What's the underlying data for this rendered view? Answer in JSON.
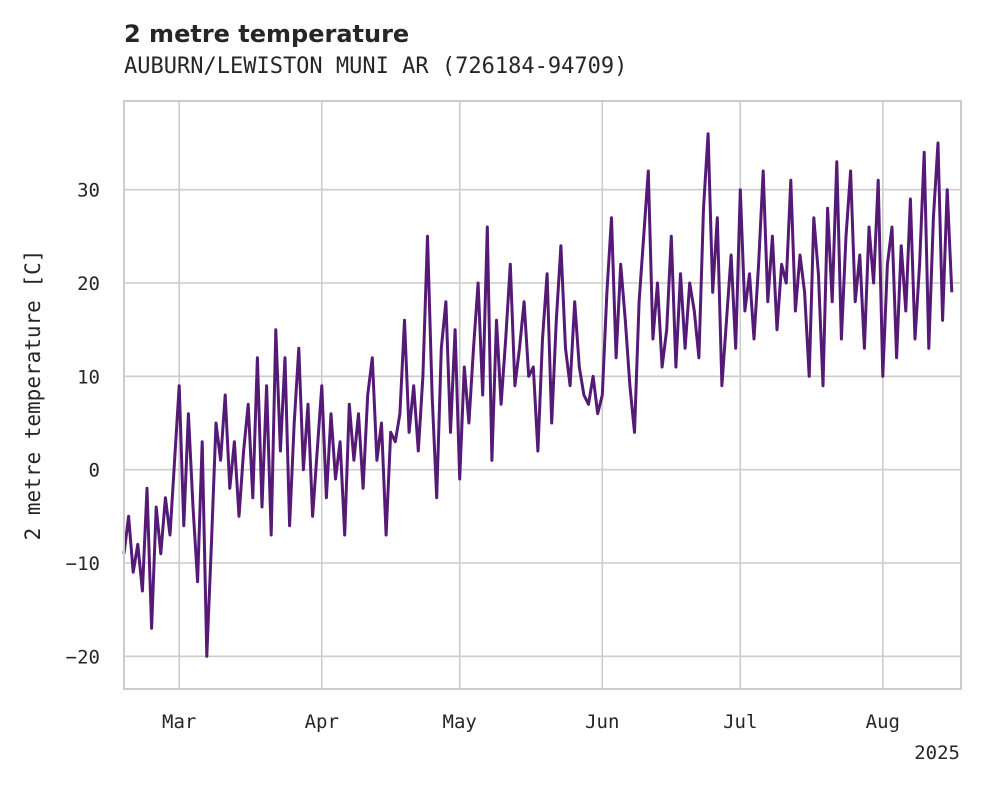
{
  "chart_data": {
    "type": "line",
    "title": "2 metre temperature",
    "subtitle": "AUBURN/LEWISTON MUNI AR (726184-94709)",
    "ylabel": "2 metre temperature [C]",
    "xlabel": "",
    "x_tick_labels": [
      "Mar",
      "Apr",
      "May",
      "Jun",
      "Jul",
      "Aug"
    ],
    "x_offset_label": "2025",
    "y_ticks": [
      -20,
      -10,
      0,
      10,
      20,
      30
    ],
    "xlim": [
      "2025-02-17",
      "2025-08-18"
    ],
    "ylim": [
      -23.5,
      39.5
    ],
    "grid": true,
    "line_color": "#551a75",
    "series": [
      {
        "points": [
          [
            "2025-02-17",
            -9
          ],
          [
            "2025-02-18",
            -5
          ],
          [
            "2025-02-19",
            -11
          ],
          [
            "2025-02-20",
            -8
          ],
          [
            "2025-02-21",
            -13
          ],
          [
            "2025-02-22",
            -2
          ],
          [
            "2025-02-23",
            -17
          ],
          [
            "2025-02-24",
            -4
          ],
          [
            "2025-02-25",
            -9
          ],
          [
            "2025-02-26",
            -3
          ],
          [
            "2025-02-27",
            -7
          ],
          [
            "2025-02-28",
            1
          ],
          [
            "2025-03-01",
            9
          ],
          [
            "2025-03-02",
            -6
          ],
          [
            "2025-03-03",
            6
          ],
          [
            "2025-03-04",
            -4
          ],
          [
            "2025-03-05",
            -12
          ],
          [
            "2025-03-06",
            3
          ],
          [
            "2025-03-07",
            -20
          ],
          [
            "2025-03-08",
            -8
          ],
          [
            "2025-03-09",
            5
          ],
          [
            "2025-03-10",
            1
          ],
          [
            "2025-03-11",
            8
          ],
          [
            "2025-03-12",
            -2
          ],
          [
            "2025-03-13",
            3
          ],
          [
            "2025-03-14",
            -5
          ],
          [
            "2025-03-15",
            2
          ],
          [
            "2025-03-16",
            7
          ],
          [
            "2025-03-17",
            -3
          ],
          [
            "2025-03-18",
            12
          ],
          [
            "2025-03-19",
            -4
          ],
          [
            "2025-03-20",
            9
          ],
          [
            "2025-03-21",
            -7
          ],
          [
            "2025-03-22",
            15
          ],
          [
            "2025-03-23",
            2
          ],
          [
            "2025-03-24",
            12
          ],
          [
            "2025-03-25",
            -6
          ],
          [
            "2025-03-26",
            5
          ],
          [
            "2025-03-27",
            13
          ],
          [
            "2025-03-28",
            0
          ],
          [
            "2025-03-29",
            7
          ],
          [
            "2025-03-30",
            -5
          ],
          [
            "2025-03-31",
            2
          ],
          [
            "2025-04-01",
            9
          ],
          [
            "2025-04-02",
            -3
          ],
          [
            "2025-04-03",
            6
          ],
          [
            "2025-04-04",
            -1
          ],
          [
            "2025-04-05",
            3
          ],
          [
            "2025-04-06",
            -7
          ],
          [
            "2025-04-07",
            7
          ],
          [
            "2025-04-08",
            1
          ],
          [
            "2025-04-09",
            6
          ],
          [
            "2025-04-10",
            -2
          ],
          [
            "2025-04-11",
            8
          ],
          [
            "2025-04-12",
            12
          ],
          [
            "2025-04-13",
            1
          ],
          [
            "2025-04-14",
            5
          ],
          [
            "2025-04-15",
            -7
          ],
          [
            "2025-04-16",
            4
          ],
          [
            "2025-04-17",
            3
          ],
          [
            "2025-04-18",
            6
          ],
          [
            "2025-04-19",
            16
          ],
          [
            "2025-04-20",
            4
          ],
          [
            "2025-04-21",
            9
          ],
          [
            "2025-04-22",
            2
          ],
          [
            "2025-04-23",
            10
          ],
          [
            "2025-04-24",
            25
          ],
          [
            "2025-04-25",
            8
          ],
          [
            "2025-04-26",
            -3
          ],
          [
            "2025-04-27",
            13
          ],
          [
            "2025-04-28",
            18
          ],
          [
            "2025-04-29",
            4
          ],
          [
            "2025-04-30",
            15
          ],
          [
            "2025-05-01",
            -1
          ],
          [
            "2025-05-02",
            11
          ],
          [
            "2025-05-03",
            5
          ],
          [
            "2025-05-04",
            13
          ],
          [
            "2025-05-05",
            20
          ],
          [
            "2025-05-06",
            8
          ],
          [
            "2025-05-07",
            26
          ],
          [
            "2025-05-08",
            1
          ],
          [
            "2025-05-09",
            16
          ],
          [
            "2025-05-10",
            7
          ],
          [
            "2025-05-11",
            14
          ],
          [
            "2025-05-12",
            22
          ],
          [
            "2025-05-13",
            9
          ],
          [
            "2025-05-14",
            13
          ],
          [
            "2025-05-15",
            18
          ],
          [
            "2025-05-16",
            10
          ],
          [
            "2025-05-17",
            11
          ],
          [
            "2025-05-18",
            2
          ],
          [
            "2025-05-19",
            14
          ],
          [
            "2025-05-20",
            21
          ],
          [
            "2025-05-21",
            5
          ],
          [
            "2025-05-22",
            16
          ],
          [
            "2025-05-23",
            24
          ],
          [
            "2025-05-24",
            13
          ],
          [
            "2025-05-25",
            9
          ],
          [
            "2025-05-26",
            18
          ],
          [
            "2025-05-27",
            11
          ],
          [
            "2025-05-28",
            8
          ],
          [
            "2025-05-29",
            7
          ],
          [
            "2025-05-30",
            10
          ],
          [
            "2025-05-31",
            6
          ],
          [
            "2025-06-01",
            8
          ],
          [
            "2025-06-02",
            19
          ],
          [
            "2025-06-03",
            27
          ],
          [
            "2025-06-04",
            12
          ],
          [
            "2025-06-05",
            22
          ],
          [
            "2025-06-06",
            16
          ],
          [
            "2025-06-07",
            9
          ],
          [
            "2025-06-08",
            4
          ],
          [
            "2025-06-09",
            18
          ],
          [
            "2025-06-10",
            25
          ],
          [
            "2025-06-11",
            32
          ],
          [
            "2025-06-12",
            14
          ],
          [
            "2025-06-13",
            20
          ],
          [
            "2025-06-14",
            11
          ],
          [
            "2025-06-15",
            15
          ],
          [
            "2025-06-16",
            25
          ],
          [
            "2025-06-17",
            11
          ],
          [
            "2025-06-18",
            21
          ],
          [
            "2025-06-19",
            13
          ],
          [
            "2025-06-20",
            20
          ],
          [
            "2025-06-21",
            17
          ],
          [
            "2025-06-22",
            12
          ],
          [
            "2025-06-23",
            28
          ],
          [
            "2025-06-24",
            36
          ],
          [
            "2025-06-25",
            19
          ],
          [
            "2025-06-26",
            27
          ],
          [
            "2025-06-27",
            9
          ],
          [
            "2025-06-28",
            16
          ],
          [
            "2025-06-29",
            23
          ],
          [
            "2025-06-30",
            13
          ],
          [
            "2025-07-01",
            30
          ],
          [
            "2025-07-02",
            17
          ],
          [
            "2025-07-03",
            21
          ],
          [
            "2025-07-04",
            14
          ],
          [
            "2025-07-05",
            22
          ],
          [
            "2025-07-06",
            32
          ],
          [
            "2025-07-07",
            18
          ],
          [
            "2025-07-08",
            25
          ],
          [
            "2025-07-09",
            15
          ],
          [
            "2025-07-10",
            22
          ],
          [
            "2025-07-11",
            20
          ],
          [
            "2025-07-12",
            31
          ],
          [
            "2025-07-13",
            17
          ],
          [
            "2025-07-14",
            23
          ],
          [
            "2025-07-15",
            19
          ],
          [
            "2025-07-16",
            10
          ],
          [
            "2025-07-17",
            27
          ],
          [
            "2025-07-18",
            21
          ],
          [
            "2025-07-19",
            9
          ],
          [
            "2025-07-20",
            28
          ],
          [
            "2025-07-21",
            18
          ],
          [
            "2025-07-22",
            33
          ],
          [
            "2025-07-23",
            14
          ],
          [
            "2025-07-24",
            25
          ],
          [
            "2025-07-25",
            32
          ],
          [
            "2025-07-26",
            18
          ],
          [
            "2025-07-27",
            23
          ],
          [
            "2025-07-28",
            13
          ],
          [
            "2025-07-29",
            26
          ],
          [
            "2025-07-30",
            20
          ],
          [
            "2025-07-31",
            31
          ],
          [
            "2025-08-01",
            10
          ],
          [
            "2025-08-02",
            22
          ],
          [
            "2025-08-03",
            26
          ],
          [
            "2025-08-04",
            12
          ],
          [
            "2025-08-05",
            24
          ],
          [
            "2025-08-06",
            17
          ],
          [
            "2025-08-07",
            29
          ],
          [
            "2025-08-08",
            14
          ],
          [
            "2025-08-09",
            22
          ],
          [
            "2025-08-10",
            34
          ],
          [
            "2025-08-11",
            13
          ],
          [
            "2025-08-12",
            27
          ],
          [
            "2025-08-13",
            35
          ],
          [
            "2025-08-14",
            16
          ],
          [
            "2025-08-15",
            30
          ],
          [
            "2025-08-16",
            19
          ]
        ]
      }
    ]
  }
}
